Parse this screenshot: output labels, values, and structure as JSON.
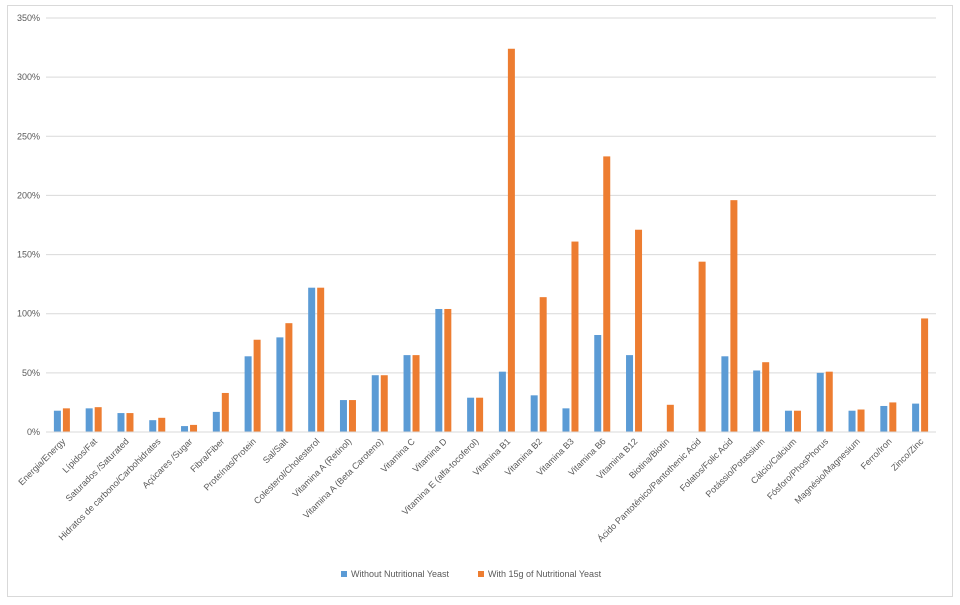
{
  "chart_data": {
    "type": "bar",
    "title": "",
    "xlabel": "",
    "ylabel": "",
    "ylim": [
      0,
      350
    ],
    "y_ticks": [
      "0%",
      "50%",
      "100%",
      "150%",
      "200%",
      "250%",
      "300%",
      "350%"
    ],
    "grid": true,
    "legend_position": "bottom",
    "categories": [
      "Energia/Energy",
      "Lípidos/Fat",
      "Saturados /Saturated",
      "Hidratos de carbono/Carbohidrates",
      "Açúcares /Sugar",
      "Fibra/Fiber",
      "Proteínas/Protein",
      "Sal/Salt",
      "Colesterol/Cholesterol",
      "Vitamina A (Retinol)",
      "Vitamina A (Beta Caroteno)",
      "Vitamina C",
      "Vitamina D",
      "Vitamina E (alfa-tocoferol)",
      "Vitamina B1",
      "Vitamina B2",
      "Vitamina B3",
      "Vitamina B6",
      "Vitamina B12",
      "Biotina/Biotin",
      "Ácido Pantoténico/Pantothenic Acid",
      "Folatos/Folic Acid",
      "Potássio/Potassium",
      "Cálcio/Calcium",
      "Fósforo/PhosPhorus",
      "Magnésio/Magnesium",
      "Ferro/Iron",
      "Zinco/Zinc"
    ],
    "series": [
      {
        "name": "Without Nutritional Yeast",
        "color": "#5b9bd5",
        "values": [
          18,
          20,
          16,
          10,
          5,
          17,
          64,
          80,
          122,
          27,
          48,
          65,
          104,
          29,
          51,
          31,
          20,
          82,
          65,
          0,
          0,
          64,
          52,
          18,
          50,
          18,
          22,
          24
        ]
      },
      {
        "name": "With 15g of Nutritional Yeast",
        "color": "#ed7d31",
        "values": [
          20,
          21,
          16,
          12,
          6,
          33,
          78,
          92,
          122,
          27,
          48,
          65,
          104,
          29,
          324,
          114,
          161,
          233,
          171,
          23,
          144,
          196,
          59,
          18,
          51,
          19,
          25,
          96
        ]
      }
    ]
  }
}
